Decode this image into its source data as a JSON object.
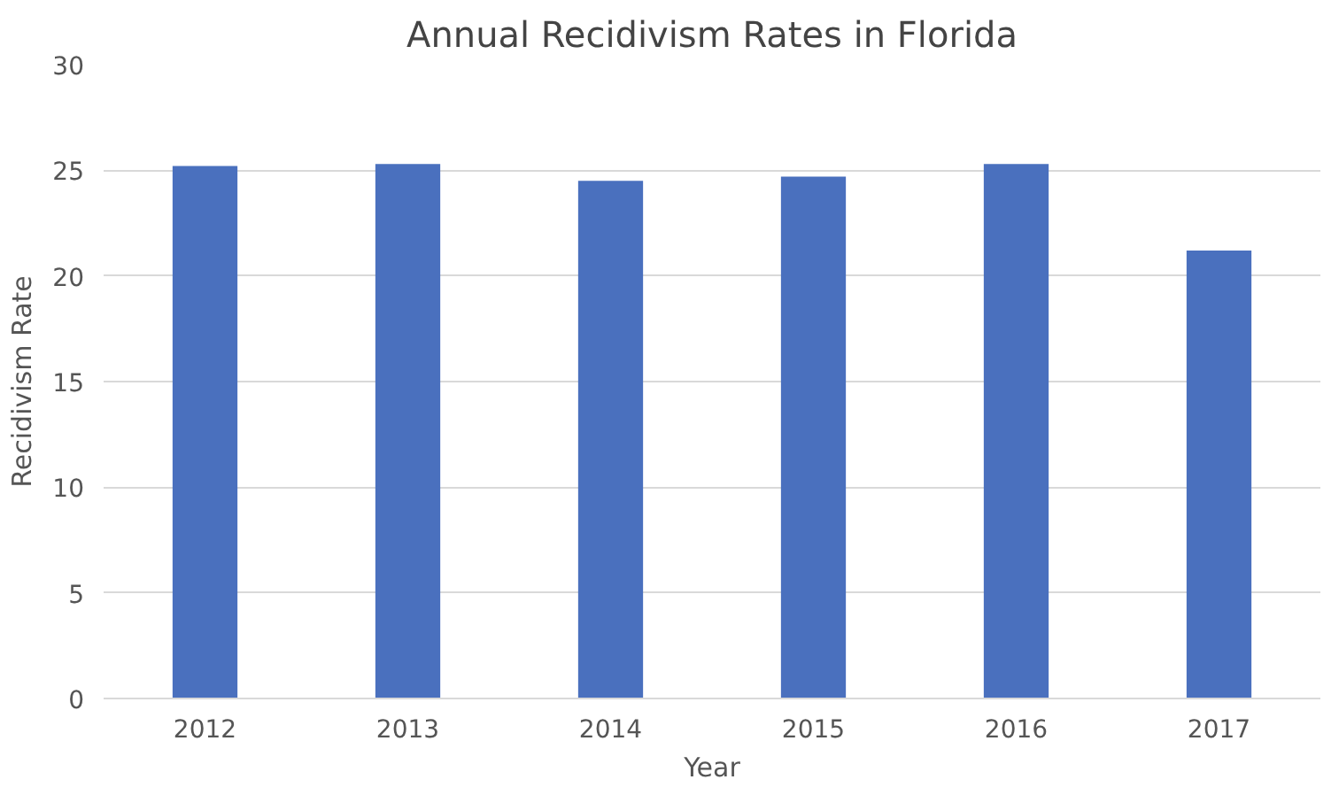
{
  "chart_data": {
    "type": "bar",
    "title": "Annual Recidivism Rates in Florida",
    "xlabel": "Year",
    "ylabel": "Recidivism Rate",
    "categories": [
      "2012",
      "2013",
      "2014",
      "2015",
      "2016",
      "2017"
    ],
    "values": [
      25.2,
      25.3,
      24.5,
      24.7,
      25.3,
      21.2
    ],
    "color": "#4a70be",
    "ylim": [
      0,
      30
    ],
    "yticks": [
      0,
      5,
      10,
      15,
      20,
      25,
      30
    ],
    "grid": "y"
  }
}
